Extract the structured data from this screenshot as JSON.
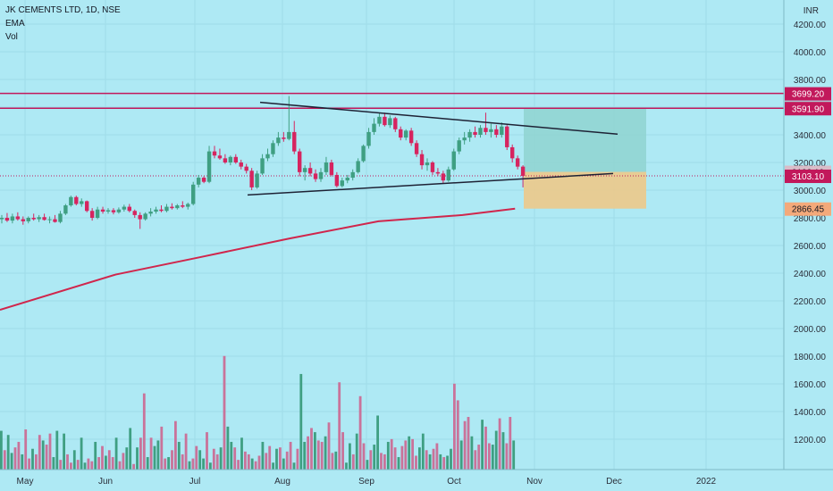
{
  "chart_data": {
    "type": "candlestick",
    "symbol": "JK CEMENTS LTD, 1D, NSE",
    "indicators": [
      "EMA",
      "Vol"
    ],
    "currency": "INR",
    "y_ticks": [
      "4200.00",
      "4000.00",
      "3800.00",
      "3600.00",
      "3400.00",
      "3200.00",
      "3000.00",
      "2800.00",
      "2600.00",
      "2400.00",
      "2200.00",
      "2000.00",
      "1800.00",
      "1600.00",
      "1400.00",
      "1200.00"
    ],
    "y_tick_values": [
      4200,
      4000,
      3800,
      3600,
      3400,
      3200,
      3000,
      2800,
      2600,
      2400,
      2200,
      2000,
      1800,
      1600,
      1400,
      1200
    ],
    "ylim": [
      1030,
      4300
    ],
    "x_labels": [
      "May",
      "Jun",
      "Jul",
      "Aug",
      "Sep",
      "Oct",
      "Nov",
      "Dec",
      "2022"
    ],
    "price_tags": [
      {
        "label": "3699.20",
        "value": 3699.2,
        "color": "#c2185b"
      },
      {
        "label": "3597.05",
        "value": 3597.05,
        "color": "#b2a5ad"
      },
      {
        "label": "3591.90",
        "value": 3591.9,
        "color": "#c2185b"
      },
      {
        "label": "3132.10",
        "value": 3132.1,
        "color": "#d9bcc8"
      },
      {
        "label": "3103.10",
        "value": 3103.1,
        "color": "#c2185b"
      },
      {
        "label": "2866.45",
        "value": 2866.45,
        "color": "#f4a97a"
      }
    ],
    "horizontal_lines": [
      3699.2,
      3591.9
    ],
    "trendlines": [
      {
        "from": [
          50,
          3635
        ],
        "to": [
          125,
          3405
        ]
      },
      {
        "from": [
          47,
          2965
        ],
        "to": [
          119,
          3120
        ]
      }
    ],
    "ema_anchors": [
      [
        0,
        2135
      ],
      [
        22,
        2390
      ],
      [
        38,
        2515
      ],
      [
        55,
        2650
      ],
      [
        72,
        2775
      ],
      [
        88,
        2820
      ],
      [
        98,
        2866.45
      ]
    ],
    "target_zone": {
      "x": [
        98,
        119
      ],
      "price": [
        3132.1,
        3591.9
      ],
      "color": "#8fd3d0"
    },
    "stop_zone": {
      "x": [
        98,
        119
      ],
      "price": [
        2866.45,
        3132.1
      ],
      "color": "#edc98a"
    },
    "candles": [
      {
        "o": 2790,
        "h": 2820,
        "l": 2760,
        "c": 2800
      },
      {
        "o": 2800,
        "h": 2835,
        "l": 2770,
        "c": 2780
      },
      {
        "o": 2780,
        "h": 2830,
        "l": 2760,
        "c": 2810
      },
      {
        "o": 2810,
        "h": 2840,
        "l": 2780,
        "c": 2790
      },
      {
        "o": 2790,
        "h": 2810,
        "l": 2750,
        "c": 2775
      },
      {
        "o": 2775,
        "h": 2810,
        "l": 2760,
        "c": 2800
      },
      {
        "o": 2800,
        "h": 2830,
        "l": 2780,
        "c": 2790
      },
      {
        "o": 2790,
        "h": 2820,
        "l": 2770,
        "c": 2805
      },
      {
        "o": 2805,
        "h": 2830,
        "l": 2780,
        "c": 2785
      },
      {
        "o": 2785,
        "h": 2810,
        "l": 2760,
        "c": 2790
      },
      {
        "o": 2790,
        "h": 2820,
        "l": 2765,
        "c": 2770
      },
      {
        "o": 2770,
        "h": 2850,
        "l": 2760,
        "c": 2830
      },
      {
        "o": 2830,
        "h": 2900,
        "l": 2820,
        "c": 2890
      },
      {
        "o": 2890,
        "h": 2960,
        "l": 2880,
        "c": 2950
      },
      {
        "o": 2950,
        "h": 2960,
        "l": 2890,
        "c": 2900
      },
      {
        "o": 2900,
        "h": 2940,
        "l": 2880,
        "c": 2920
      },
      {
        "o": 2920,
        "h": 2925,
        "l": 2840,
        "c": 2850
      },
      {
        "o": 2850,
        "h": 2870,
        "l": 2780,
        "c": 2800
      },
      {
        "o": 2800,
        "h": 2880,
        "l": 2790,
        "c": 2860
      },
      {
        "o": 2860,
        "h": 2880,
        "l": 2830,
        "c": 2845
      },
      {
        "o": 2845,
        "h": 2870,
        "l": 2830,
        "c": 2855
      },
      {
        "o": 2855,
        "h": 2870,
        "l": 2825,
        "c": 2840
      },
      {
        "o": 2840,
        "h": 2875,
        "l": 2830,
        "c": 2860
      },
      {
        "o": 2860,
        "h": 2895,
        "l": 2845,
        "c": 2880
      },
      {
        "o": 2880,
        "h": 2900,
        "l": 2840,
        "c": 2850
      },
      {
        "o": 2850,
        "h": 2860,
        "l": 2800,
        "c": 2820
      },
      {
        "o": 2820,
        "h": 2840,
        "l": 2720,
        "c": 2790
      },
      {
        "o": 2790,
        "h": 2840,
        "l": 2780,
        "c": 2830
      },
      {
        "o": 2830,
        "h": 2870,
        "l": 2810,
        "c": 2845
      },
      {
        "o": 2845,
        "h": 2880,
        "l": 2830,
        "c": 2860
      },
      {
        "o": 2860,
        "h": 2890,
        "l": 2840,
        "c": 2850
      },
      {
        "o": 2850,
        "h": 2900,
        "l": 2840,
        "c": 2880
      },
      {
        "o": 2880,
        "h": 2905,
        "l": 2860,
        "c": 2870
      },
      {
        "o": 2870,
        "h": 2900,
        "l": 2860,
        "c": 2890
      },
      {
        "o": 2890,
        "h": 2920,
        "l": 2870,
        "c": 2880
      },
      {
        "o": 2880,
        "h": 2910,
        "l": 2860,
        "c": 2900
      },
      {
        "o": 2900,
        "h": 3060,
        "l": 2890,
        "c": 3040
      },
      {
        "o": 3040,
        "h": 3110,
        "l": 3020,
        "c": 3090
      },
      {
        "o": 3090,
        "h": 3100,
        "l": 3050,
        "c": 3060
      },
      {
        "o": 3060,
        "h": 3320,
        "l": 3050,
        "c": 3280
      },
      {
        "o": 3280,
        "h": 3320,
        "l": 3230,
        "c": 3250
      },
      {
        "o": 3250,
        "h": 3300,
        "l": 3220,
        "c": 3230
      },
      {
        "o": 3230,
        "h": 3260,
        "l": 3190,
        "c": 3200
      },
      {
        "o": 3200,
        "h": 3250,
        "l": 3180,
        "c": 3240
      },
      {
        "o": 3240,
        "h": 3260,
        "l": 3190,
        "c": 3200
      },
      {
        "o": 3200,
        "h": 3220,
        "l": 3150,
        "c": 3170
      },
      {
        "o": 3170,
        "h": 3190,
        "l": 3120,
        "c": 3140
      },
      {
        "o": 3140,
        "h": 3160,
        "l": 3000,
        "c": 3020
      },
      {
        "o": 3020,
        "h": 3140,
        "l": 3010,
        "c": 3120
      },
      {
        "o": 3120,
        "h": 3260,
        "l": 3110,
        "c": 3230
      },
      {
        "o": 3230,
        "h": 3300,
        "l": 3210,
        "c": 3260
      },
      {
        "o": 3260,
        "h": 3360,
        "l": 3240,
        "c": 3340
      },
      {
        "o": 3340,
        "h": 3420,
        "l": 3320,
        "c": 3380
      },
      {
        "o": 3380,
        "h": 3420,
        "l": 3350,
        "c": 3370
      },
      {
        "o": 3370,
        "h": 3680,
        "l": 3360,
        "c": 3420
      },
      {
        "o": 3420,
        "h": 3500,
        "l": 3260,
        "c": 3280
      },
      {
        "o": 3280,
        "h": 3300,
        "l": 3100,
        "c": 3130
      },
      {
        "o": 3130,
        "h": 3180,
        "l": 3070,
        "c": 3160
      },
      {
        "o": 3160,
        "h": 3200,
        "l": 3100,
        "c": 3120
      },
      {
        "o": 3120,
        "h": 3150,
        "l": 3060,
        "c": 3080
      },
      {
        "o": 3080,
        "h": 3160,
        "l": 3060,
        "c": 3130
      },
      {
        "o": 3130,
        "h": 3240,
        "l": 3110,
        "c": 3200
      },
      {
        "o": 3200,
        "h": 3220,
        "l": 3100,
        "c": 3110
      },
      {
        "o": 3110,
        "h": 3130,
        "l": 3020,
        "c": 3030
      },
      {
        "o": 3030,
        "h": 3090,
        "l": 3020,
        "c": 3070
      },
      {
        "o": 3070,
        "h": 3110,
        "l": 3050,
        "c": 3090
      },
      {
        "o": 3090,
        "h": 3150,
        "l": 3070,
        "c": 3130
      },
      {
        "o": 3130,
        "h": 3230,
        "l": 3120,
        "c": 3210
      },
      {
        "o": 3210,
        "h": 3330,
        "l": 3200,
        "c": 3320
      },
      {
        "o": 3320,
        "h": 3450,
        "l": 3300,
        "c": 3420
      },
      {
        "o": 3420,
        "h": 3520,
        "l": 3400,
        "c": 3480
      },
      {
        "o": 3480,
        "h": 3560,
        "l": 3460,
        "c": 3530
      },
      {
        "o": 3530,
        "h": 3560,
        "l": 3460,
        "c": 3470
      },
      {
        "o": 3470,
        "h": 3540,
        "l": 3450,
        "c": 3520
      },
      {
        "o": 3520,
        "h": 3530,
        "l": 3420,
        "c": 3440
      },
      {
        "o": 3440,
        "h": 3460,
        "l": 3360,
        "c": 3380
      },
      {
        "o": 3380,
        "h": 3440,
        "l": 3360,
        "c": 3430
      },
      {
        "o": 3430,
        "h": 3450,
        "l": 3320,
        "c": 3340
      },
      {
        "o": 3340,
        "h": 3360,
        "l": 3240,
        "c": 3260
      },
      {
        "o": 3260,
        "h": 3290,
        "l": 3150,
        "c": 3180
      },
      {
        "o": 3180,
        "h": 3230,
        "l": 3140,
        "c": 3200
      },
      {
        "o": 3200,
        "h": 3210,
        "l": 3110,
        "c": 3130
      },
      {
        "o": 3130,
        "h": 3160,
        "l": 3100,
        "c": 3120
      },
      {
        "o": 3120,
        "h": 3140,
        "l": 3050,
        "c": 3070
      },
      {
        "o": 3070,
        "h": 3170,
        "l": 3060,
        "c": 3150
      },
      {
        "o": 3150,
        "h": 3300,
        "l": 3140,
        "c": 3280
      },
      {
        "o": 3280,
        "h": 3380,
        "l": 3260,
        "c": 3360
      },
      {
        "o": 3360,
        "h": 3420,
        "l": 3330,
        "c": 3380
      },
      {
        "o": 3380,
        "h": 3440,
        "l": 3350,
        "c": 3420
      },
      {
        "o": 3420,
        "h": 3460,
        "l": 3380,
        "c": 3400
      },
      {
        "o": 3400,
        "h": 3470,
        "l": 3380,
        "c": 3450
      },
      {
        "o": 3450,
        "h": 3560,
        "l": 3400,
        "c": 3420
      },
      {
        "o": 3420,
        "h": 3480,
        "l": 3380,
        "c": 3440
      },
      {
        "o": 3440,
        "h": 3470,
        "l": 3380,
        "c": 3400
      },
      {
        "o": 3400,
        "h": 3490,
        "l": 3380,
        "c": 3460
      },
      {
        "o": 3460,
        "h": 3470,
        "l": 3290,
        "c": 3310
      },
      {
        "o": 3310,
        "h": 3330,
        "l": 3200,
        "c": 3230
      },
      {
        "o": 3230,
        "h": 3250,
        "l": 3150,
        "c": 3170
      },
      {
        "o": 3170,
        "h": 3180,
        "l": 3020,
        "c": 3103.1
      }
    ],
    "volumes": [
      1310,
      1170,
      1280,
      1150,
      1190,
      1230,
      1140,
      1320,
      1110,
      1180,
      1140,
      1280,
      1240,
      1210,
      1290,
      1120,
      1310,
      1100,
      1290,
      1140,
      1080,
      1170,
      1100,
      1260,
      1080,
      1110,
      1090,
      1230,
      1120,
      1200,
      1130,
      1170,
      1120,
      1260,
      1090,
      1150,
      1190,
      1330,
      1070,
      1190,
      1260,
      1580,
      1120,
      1260,
      1200,
      1240,
      1340,
      1110,
      1120,
      1170,
      1380,
      1230,
      1140,
      1290,
      1090,
      1110,
      1200,
      1170,
      1110,
      1300,
      1080,
      1180,
      1140,
      1190,
      1850,
      1340,
      1230,
      1190,
      1100,
      1260,
      1160,
      1140,
      1110,
      1090,
      1130,
      1230,
      1150,
      1200,
      1080,
      1180,
      1190,
      1110,
      1160,
      1230,
      1080,
      1180,
      1720,
      1230,
      1270,
      1330,
      1300,
      1240,
      1230,
      1270,
      1370,
      1150,
      1160,
      1660,
      1300,
      1080,
      1220,
      1140,
      1290,
      1560,
      1220,
      1100,
      1170,
      1210,
      1420,
      1150,
      1140,
      1230,
      1250,
      1190,
      1120,
      1200,
      1240,
      1270,
      1250,
      1130,
      1190,
      1290,
      1170,
      1140,
      1180,
      1220,
      1140,
      1120,
      1130,
      1180,
      1650,
      1530,
      1240,
      1380,
      1410,
      1270,
      1170,
      1210,
      1390,
      1340,
      1220,
      1210,
      1310,
      1400,
      1300,
      1220,
      1410,
      1240,
      1140,
      1210
    ],
    "vol_max": 1900
  }
}
